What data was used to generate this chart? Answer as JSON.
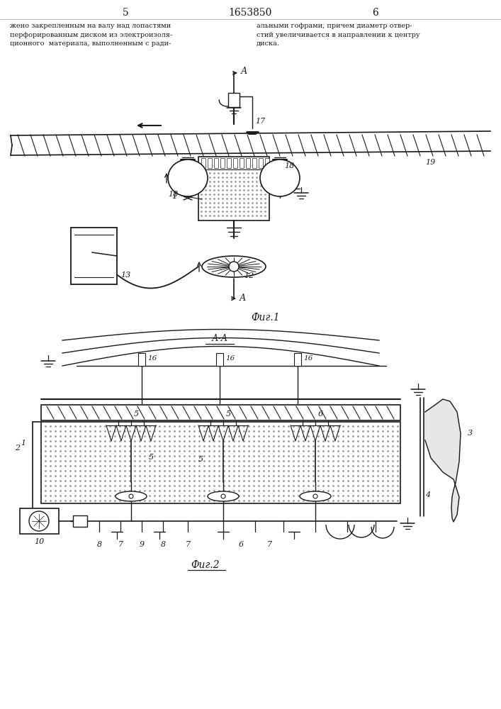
{
  "page_numbers": [
    "5",
    "6"
  ],
  "patent_number": "1653850",
  "text_left": "жено закрепленным на валу над лопастями\nперфорированным диском из электроизоля-\nционного  материала, выполненным с ради-",
  "text_right": "альными гофрами, причем диаметр отвер-\nстий увеличивается в направлении к центру\nдиска.",
  "fig1_label": "Фиг.1",
  "fig2_label": "Фиг.2",
  "section_label": "А-А",
  "bg_color": "#ffffff",
  "line_color": "#1a1a1a"
}
